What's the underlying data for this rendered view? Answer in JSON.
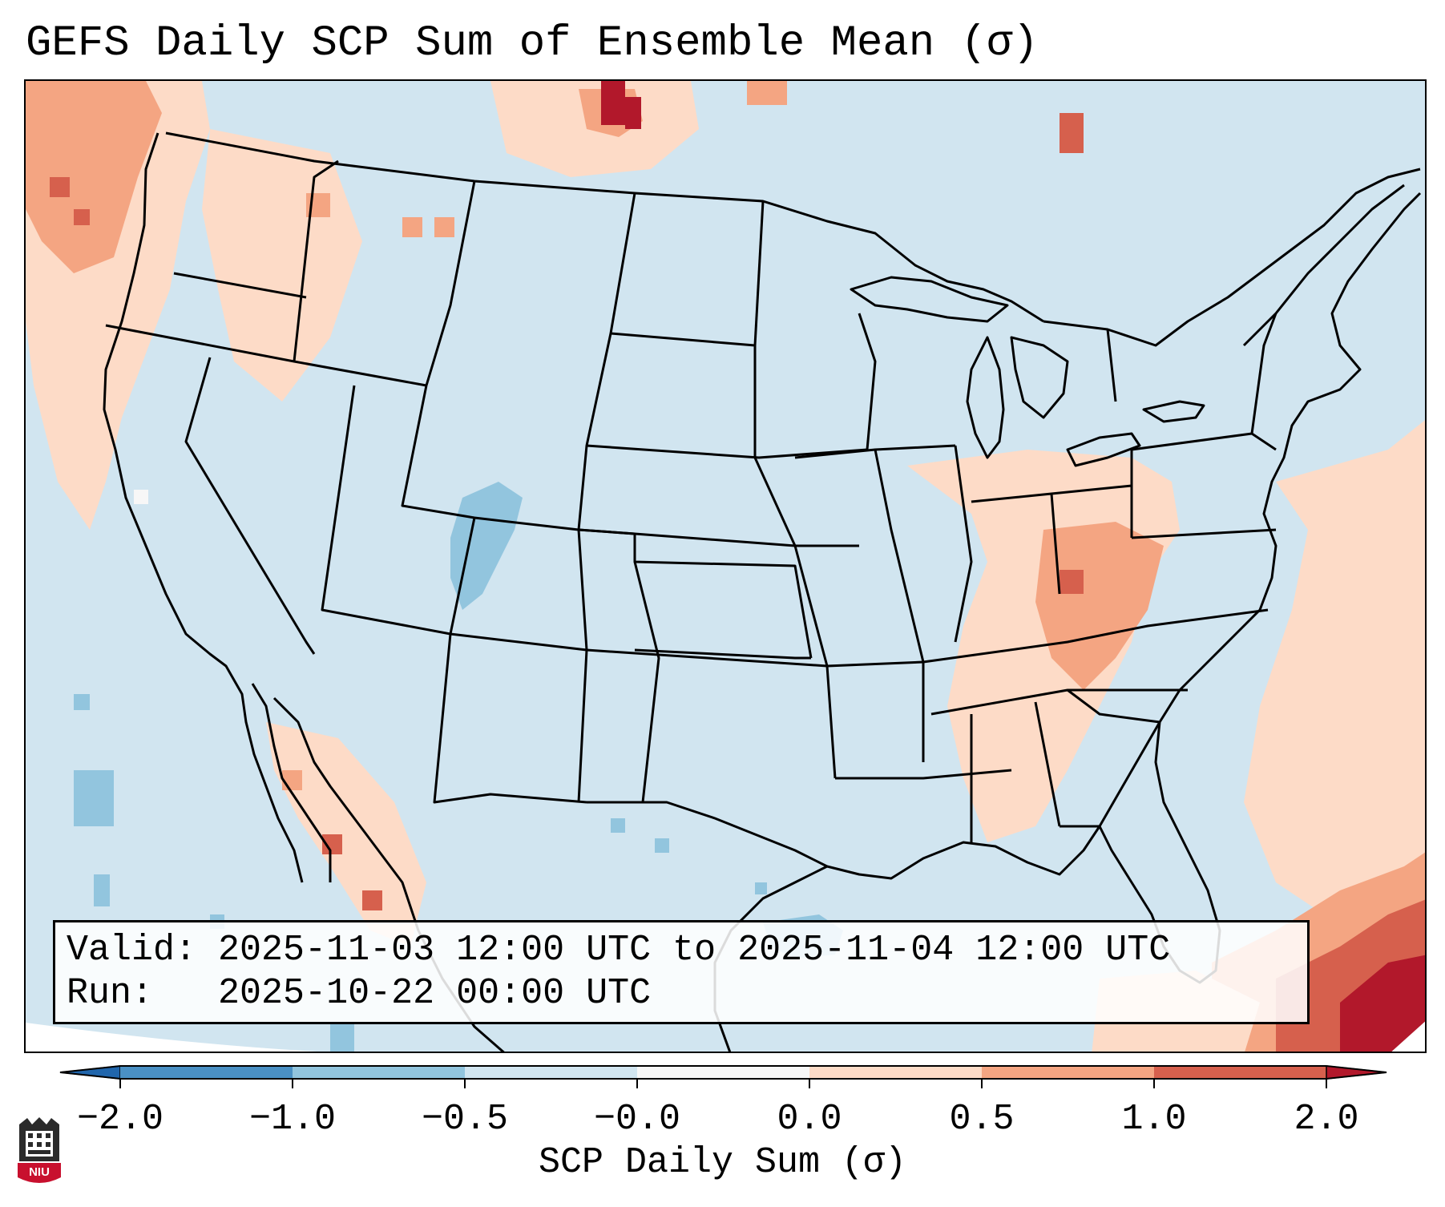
{
  "title": "GEFS Daily SCP Sum of Ensemble Mean (σ)",
  "info": {
    "valid_label": "Valid:",
    "valid_value": "2025-11-03 12:00 UTC to 2025-11-04 12:00 UTC",
    "run_label": "Run:",
    "run_value": "2025-10-22 00:00 UTC"
  },
  "colorbar": {
    "label": "SCP Daily Sum (σ)",
    "ticks": [
      "−2.0",
      "−1.0",
      "−0.5",
      "−0.0",
      "0.0",
      "0.5",
      "1.0",
      "2.0"
    ],
    "bins": [
      {
        "from": -2.0,
        "to": -1.0,
        "color": "#4a90c4"
      },
      {
        "from": -1.0,
        "to": -0.5,
        "color": "#92c5de"
      },
      {
        "from": -0.5,
        "to": -0.0,
        "color": "#d1e5f0"
      },
      {
        "from": -0.0,
        "to": 0.0,
        "color": "#f7f7f7"
      },
      {
        "from": 0.0,
        "to": 0.5,
        "color": "#fddbc7"
      },
      {
        "from": 0.5,
        "to": 1.0,
        "color": "#f4a582"
      },
      {
        "from": 1.0,
        "to": 2.0,
        "color": "#d6604d"
      }
    ],
    "under_color": "#2166ac",
    "over_color": "#b2182b",
    "extend": "both"
  },
  "map": {
    "background_color": "#d1e5f0",
    "outside_domain_color": "#ffffff",
    "line_color": "#000000",
    "field_description_levels": {
      "neg2": "#4a90c4",
      "neg1": "#92c5de",
      "neg05": "#d1e5f0",
      "pos0": "#fddbc7",
      "pos05": "#f4a582",
      "pos1": "#d6604d",
      "pos2": "#b2182b"
    }
  },
  "logo": {
    "text": "NIU",
    "color": "#c8102e"
  }
}
